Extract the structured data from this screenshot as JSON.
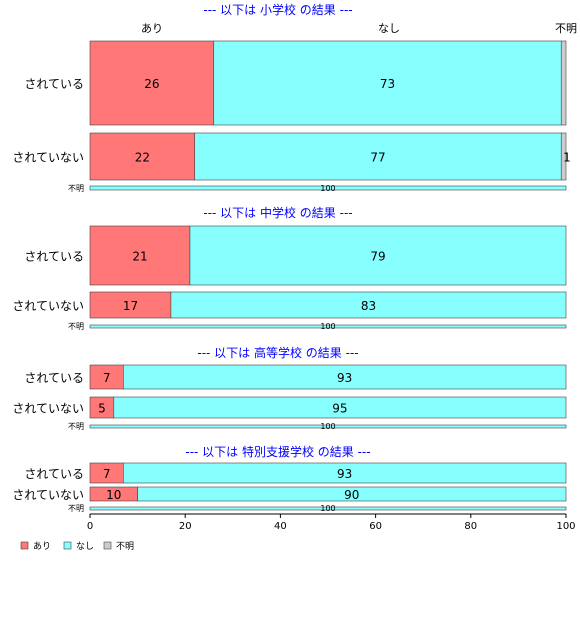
{
  "chart_data": {
    "type": "bar",
    "orientation": "horizontal",
    "stacked": "percent",
    "top_category_labels": [
      "あり",
      "なし",
      "不明"
    ],
    "xlim": [
      0,
      100
    ],
    "x_ticks": [
      0,
      20,
      40,
      60,
      80,
      100
    ],
    "legend_placement": "bottom-left",
    "grid": false,
    "series": [
      {
        "name": "あり",
        "color": "#FF7777"
      },
      {
        "name": "なし",
        "color": "#88FFFF"
      },
      {
        "name": "不明",
        "color": "#CCCCCC"
      }
    ],
    "panels": [
      {
        "title": "--- 以下は 小学校 の結果 ---",
        "rows": [
          {
            "label": "されている",
            "values": [
              26,
              73,
              1
            ],
            "shown_labels": [
              "26",
              "73",
              ""
            ]
          },
          {
            "label": "されていない",
            "values": [
              22,
              77,
              1
            ],
            "shown_labels": [
              "22",
              "77",
              "1"
            ]
          },
          {
            "label": "不明",
            "values": [
              0,
              100,
              0
            ],
            "shown_labels": [
              "",
              "100",
              ""
            ]
          }
        ]
      },
      {
        "title": "--- 以下は 中学校 の結果 ---",
        "rows": [
          {
            "label": "されている",
            "values": [
              21,
              79,
              0
            ],
            "shown_labels": [
              "21",
              "79",
              ""
            ]
          },
          {
            "label": "されていない",
            "values": [
              17,
              83,
              0
            ],
            "shown_labels": [
              "17",
              "83",
              ""
            ]
          },
          {
            "label": "不明",
            "values": [
              0,
              100,
              0
            ],
            "shown_labels": [
              "",
              "100",
              ""
            ]
          }
        ]
      },
      {
        "title": "--- 以下は 高等学校 の結果 ---",
        "rows": [
          {
            "label": "されている",
            "values": [
              7,
              93,
              0
            ],
            "shown_labels": [
              "7",
              "93",
              ""
            ]
          },
          {
            "label": "されていない",
            "values": [
              5,
              95,
              0
            ],
            "shown_labels": [
              "5",
              "95",
              ""
            ]
          },
          {
            "label": "不明",
            "values": [
              0,
              100,
              0
            ],
            "shown_labels": [
              "",
              "100",
              ""
            ]
          }
        ]
      },
      {
        "title": "--- 以下は 特別支援学校 の結果 ---",
        "rows": [
          {
            "label": "されている",
            "values": [
              7,
              93,
              0
            ],
            "shown_labels": [
              "7",
              "93",
              ""
            ]
          },
          {
            "label": "されていない",
            "values": [
              10,
              90,
              0
            ],
            "shown_labels": [
              "10",
              "90",
              ""
            ]
          },
          {
            "label": "不明",
            "values": [
              0,
              100,
              0
            ],
            "shown_labels": [
              "",
              "100",
              ""
            ]
          }
        ]
      }
    ]
  }
}
